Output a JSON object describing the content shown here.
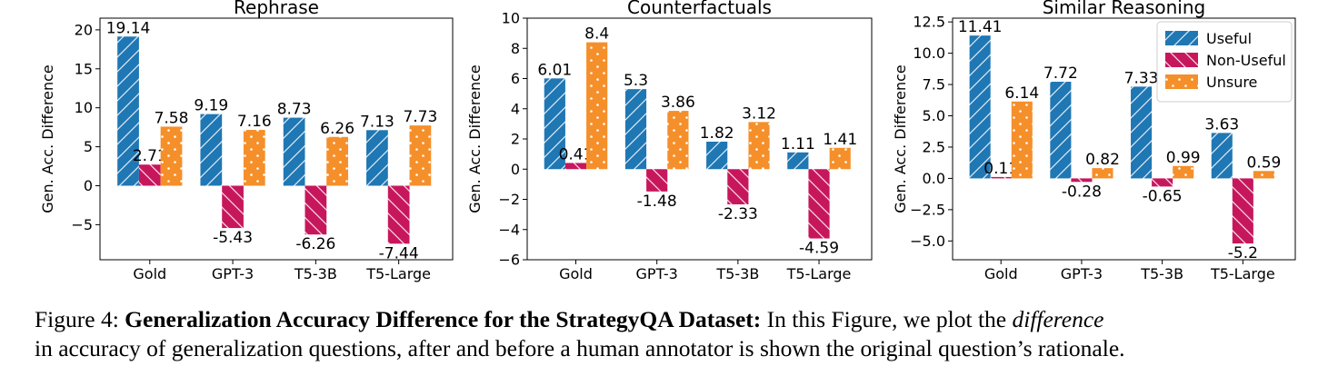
{
  "colors": {
    "Useful": "#1f77b4",
    "Non-Useful": "#c7175c",
    "Unsure": "#f58f2a"
  },
  "chart_data": [
    {
      "type": "bar",
      "title": "Rephrase",
      "ylabel": "Gen. Acc. Difference",
      "categories": [
        "Gold",
        "GPT-3",
        "T5-3B",
        "T5-Large"
      ],
      "ylim": [
        -9.5,
        21.5
      ],
      "yticks": [
        -5,
        0,
        5,
        10,
        15,
        20
      ],
      "ytick_labels": [
        "−5",
        "0",
        "5",
        "10",
        "15",
        "20"
      ],
      "legend": false,
      "series": [
        {
          "name": "Useful",
          "values": [
            19.14,
            9.19,
            8.73,
            7.13
          ],
          "labels": [
            "19.14",
            "9.19",
            "8.73",
            "7.13"
          ]
        },
        {
          "name": "Non-Useful",
          "values": [
            2.71,
            -5.43,
            -6.26,
            -7.44
          ],
          "labels": [
            "2.71",
            "-5.43",
            "-6.26",
            "-7.44"
          ]
        },
        {
          "name": "Unsure",
          "values": [
            7.58,
            7.16,
            6.26,
            7.73
          ],
          "labels": [
            "7.58",
            "7.16",
            "6.26",
            "7.73"
          ]
        }
      ]
    },
    {
      "type": "bar",
      "title": "Counterfactuals",
      "ylabel": "Gen. Acc. Difference",
      "categories": [
        "Gold",
        "GPT-3",
        "T5-3B",
        "T5-Large"
      ],
      "ylim": [
        -6,
        10
      ],
      "yticks": [
        -6,
        -4,
        -2,
        0,
        2,
        4,
        6,
        8,
        10
      ],
      "ytick_labels": [
        "−6",
        "−4",
        "−2",
        "0",
        "2",
        "4",
        "6",
        "8",
        "10"
      ],
      "legend": false,
      "series": [
        {
          "name": "Useful",
          "values": [
            6.01,
            5.3,
            1.82,
            1.11
          ],
          "labels": [
            "6.01",
            "5.3",
            "1.82",
            "1.11"
          ]
        },
        {
          "name": "Non-Useful",
          "values": [
            0.41,
            -1.48,
            -2.33,
            -4.59
          ],
          "labels": [
            "0.41",
            "-1.48",
            "-2.33",
            "-4.59"
          ]
        },
        {
          "name": "Unsure",
          "values": [
            8.4,
            3.86,
            3.12,
            1.41
          ],
          "labels": [
            "8.4",
            "3.86",
            "3.12",
            "1.41"
          ]
        }
      ]
    },
    {
      "type": "bar",
      "title": "Similar Reasoning",
      "ylabel": "Gen. Acc. Difference",
      "categories": [
        "Gold",
        "GPT-3",
        "T5-3B",
        "T5-Large"
      ],
      "ylim": [
        -6.5,
        12.8
      ],
      "yticks": [
        -5,
        -2.5,
        0,
        2.5,
        5,
        7.5,
        10,
        12.5
      ],
      "ytick_labels": [
        "−5.0",
        "−2.5",
        "0.0",
        "2.5",
        "5.0",
        "7.5",
        "10.0",
        "12.5"
      ],
      "legend": true,
      "legend_position": "top-right",
      "series": [
        {
          "name": "Useful",
          "values": [
            11.41,
            7.72,
            7.33,
            3.63
          ],
          "labels": [
            "11.41",
            "7.72",
            "7.33",
            "3.63"
          ]
        },
        {
          "name": "Non-Useful",
          "values": [
            0.11,
            -0.28,
            -0.65,
            -5.2
          ],
          "labels": [
            "0.11",
            "-0.28",
            "-0.65",
            "-5.2"
          ]
        },
        {
          "name": "Unsure",
          "values": [
            6.14,
            0.82,
            0.99,
            0.59
          ],
          "labels": [
            "6.14",
            "0.82",
            "0.99",
            "0.59"
          ]
        }
      ]
    }
  ],
  "caption": {
    "label": "Figure 4:",
    "bold_title": "Generalization Accuracy Difference for the StrategyQA Dataset:",
    "text_before_italic": "In this Figure, we plot the",
    "italic_word": "difference",
    "line2": "in accuracy of generalization questions, after and before a human annotator is shown the original question’s rationale."
  }
}
